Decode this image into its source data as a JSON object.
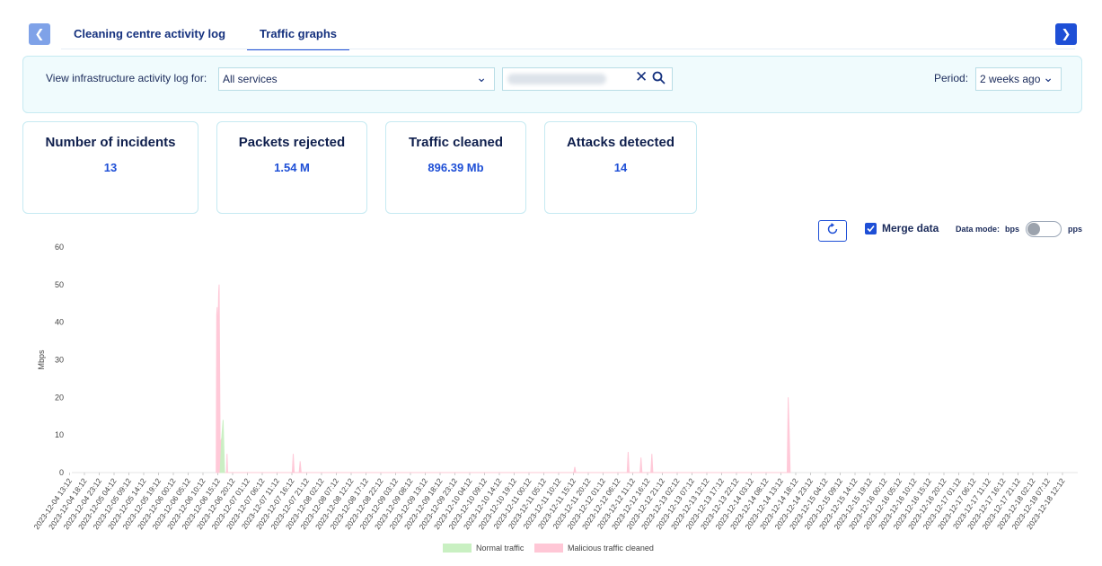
{
  "tabs": [
    {
      "label": "Cleaning centre activity log",
      "active": false
    },
    {
      "label": "Traffic graphs",
      "active": true
    }
  ],
  "icons": {
    "prev": "chevron-left-icon",
    "next": "chevron-right-icon",
    "clear": "close-icon",
    "search": "search-icon",
    "refresh": "refresh-icon",
    "check": "check-icon"
  },
  "filter": {
    "label": "View infrastructure activity log for:",
    "service_value": "All services",
    "period_label": "Period:",
    "period_value": "2 weeks ago"
  },
  "stats": [
    {
      "title": "Number of incidents",
      "value": "13"
    },
    {
      "title": "Packets rejected",
      "value": "1.54 M"
    },
    {
      "title": "Traffic cleaned",
      "value": "896.39 Mb"
    },
    {
      "title": "Attacks detected",
      "value": "14"
    }
  ],
  "controls": {
    "merge_label": "Merge data",
    "merge_checked": true,
    "data_mode_label": "Data mode:",
    "mode_left": "bps",
    "mode_right": "pps",
    "mode_pps": false
  },
  "colors": {
    "accent": "#1e4fd6",
    "normal": "#c9f0c2",
    "malicious": "#ffc7d6"
  },
  "chart_data": {
    "type": "area",
    "ylabel": "Mbps",
    "ylim": [
      0,
      60
    ],
    "yticks": [
      0,
      10,
      20,
      30,
      40,
      50,
      60
    ],
    "x_start": "2023-12-04 00:00",
    "x_end": "2023-12-18 12:12",
    "xticks": [
      "2023-12-04 13:12",
      "2023-12-04 18:12",
      "2023-12-04 23:12",
      "2023-12-05 04:12",
      "2023-12-05 09:12",
      "2023-12-05 14:12",
      "2023-12-05 19:12",
      "2023-12-06 00:12",
      "2023-12-06 05:12",
      "2023-12-06 10:12",
      "2023-12-06 15:12",
      "2023-12-06 20:12",
      "2023-12-07 01:12",
      "2023-12-07 06:12",
      "2023-12-07 11:12",
      "2023-12-07 16:12",
      "2023-12-07 21:12",
      "2023-12-08 02:12",
      "2023-12-08 07:12",
      "2023-12-08 12:12",
      "2023-12-08 17:12",
      "2023-12-08 22:12",
      "2023-12-09 03:12",
      "2023-12-09 08:12",
      "2023-12-09 13:12",
      "2023-12-09 18:12",
      "2023-12-09 23:12",
      "2023-12-10 04:12",
      "2023-12-10 09:12",
      "2023-12-10 14:12",
      "2023-12-10 19:12",
      "2023-12-11 00:12",
      "2023-12-11 05:12",
      "2023-12-11 10:12",
      "2023-12-11 15:12",
      "2023-12-11 20:12",
      "2023-12-12 01:12",
      "2023-12-12 06:12",
      "2023-12-12 11:12",
      "2023-12-12 16:12",
      "2023-12-12 21:12",
      "2023-12-13 02:12",
      "2023-12-13 07:12",
      "2023-12-13 12:12",
      "2023-12-13 17:12",
      "2023-12-13 22:12",
      "2023-12-14 03:12",
      "2023-12-14 08:12",
      "2023-12-14 13:12",
      "2023-12-14 18:12",
      "2023-12-14 23:12",
      "2023-12-15 04:12",
      "2023-12-15 09:12",
      "2023-12-15 14:12",
      "2023-12-15 19:12",
      "2023-12-16 00:12",
      "2023-12-16 05:12",
      "2023-12-16 10:12",
      "2023-12-16 15:12",
      "2023-12-16 20:12",
      "2023-12-17 01:12",
      "2023-12-17 06:12",
      "2023-12-17 11:12",
      "2023-12-17 16:12",
      "2023-12-17 21:12",
      "2023-12-18 02:12",
      "2023-12-18 07:12",
      "2023-12-18 12:12"
    ],
    "legend_position": "bottom",
    "grid": false,
    "series": [
      {
        "name": "Normal traffic",
        "color": "#c9f0c2",
        "points": [
          {
            "x": "2023-12-06 16:00",
            "y": 0
          },
          {
            "x": "2023-12-06 16:30",
            "y": 9
          },
          {
            "x": "2023-12-06 17:00",
            "y": 14
          },
          {
            "x": "2023-12-06 17:30",
            "y": 0
          }
        ]
      },
      {
        "name": "Malicious traffic cleaned",
        "color": "#ffc7d6",
        "points": [
          {
            "x": "2023-12-06 14:40",
            "y": 0
          },
          {
            "x": "2023-12-06 14:50",
            "y": 42
          },
          {
            "x": "2023-12-06 15:00",
            "y": 44
          },
          {
            "x": "2023-12-06 15:10",
            "y": 35
          },
          {
            "x": "2023-12-06 15:30",
            "y": 48
          },
          {
            "x": "2023-12-06 15:40",
            "y": 50
          },
          {
            "x": "2023-12-06 16:00",
            "y": 8
          },
          {
            "x": "2023-12-06 16:30",
            "y": 9
          },
          {
            "x": "2023-12-06 17:00",
            "y": 3
          },
          {
            "x": "2023-12-06 17:20",
            "y": 0
          },
          {
            "x": "2023-12-06 18:10",
            "y": 0
          },
          {
            "x": "2023-12-06 18:20",
            "y": 5
          },
          {
            "x": "2023-12-06 18:30",
            "y": 0
          },
          {
            "x": "2023-12-07 16:20",
            "y": 0
          },
          {
            "x": "2023-12-07 16:40",
            "y": 5
          },
          {
            "x": "2023-12-07 17:00",
            "y": 0
          },
          {
            "x": "2023-12-07 18:40",
            "y": 0
          },
          {
            "x": "2023-12-07 19:00",
            "y": 3
          },
          {
            "x": "2023-12-07 19:20",
            "y": 0
          },
          {
            "x": "2023-12-11 15:20",
            "y": 0
          },
          {
            "x": "2023-12-11 15:40",
            "y": 1.5
          },
          {
            "x": "2023-12-11 16:00",
            "y": 0
          },
          {
            "x": "2023-12-12 09:20",
            "y": 0
          },
          {
            "x": "2023-12-12 09:40",
            "y": 5.5
          },
          {
            "x": "2023-12-12 10:00",
            "y": 0
          },
          {
            "x": "2023-12-12 13:40",
            "y": 0
          },
          {
            "x": "2023-12-12 14:00",
            "y": 4
          },
          {
            "x": "2023-12-12 14:20",
            "y": 0
          },
          {
            "x": "2023-12-12 17:20",
            "y": 0
          },
          {
            "x": "2023-12-12 17:40",
            "y": 5
          },
          {
            "x": "2023-12-12 18:00",
            "y": 0
          },
          {
            "x": "2023-12-14 15:20",
            "y": 0
          },
          {
            "x": "2023-12-14 15:40",
            "y": 20
          },
          {
            "x": "2023-12-14 16:00",
            "y": 11
          },
          {
            "x": "2023-12-14 16:20",
            "y": 0
          }
        ]
      }
    ]
  }
}
